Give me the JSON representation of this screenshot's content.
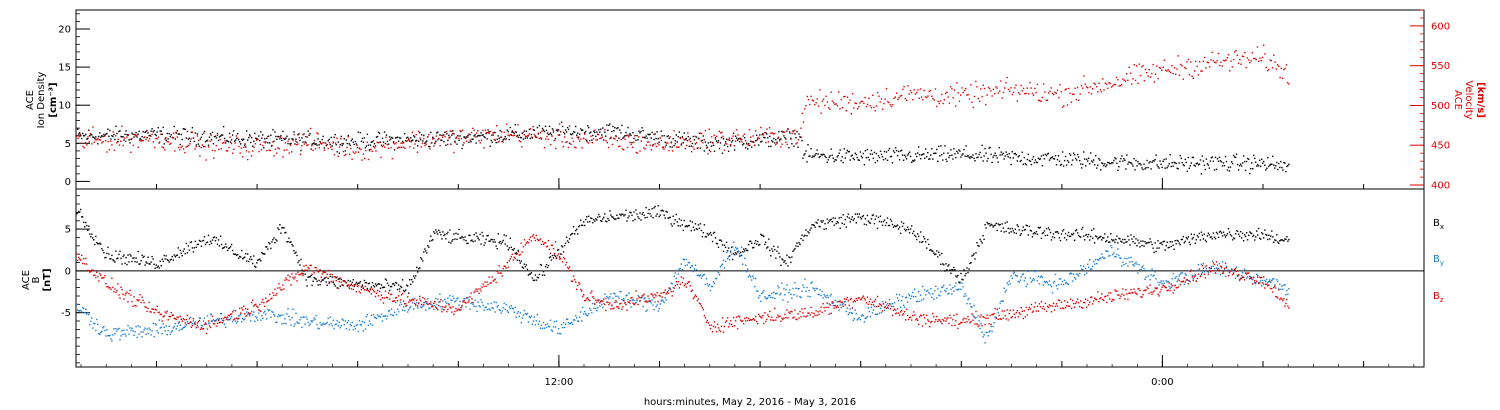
{
  "colors": {
    "black": "#000000",
    "red": "#e00000",
    "blue": "#1a7fd6"
  },
  "xlabel": "hours:minutes, May  2, 2016 - May  3, 2016",
  "chart_data": [
    {
      "type": "scatter",
      "name": "density-velocity",
      "x_unit": "hours from 2016-05-02 00:00",
      "xlim": [
        2.4,
        29.2
      ],
      "left_axis": {
        "label_lines": [
          "ACE",
          "Ion Density",
          "[cm⁻³]"
        ],
        "ylim": [
          -1,
          22.5
        ],
        "ticks": [
          0,
          5,
          10,
          15,
          20
        ],
        "color": "#000000"
      },
      "right_axis": {
        "label_lines": [
          "ACE",
          "Velocity",
          "[km/s]"
        ],
        "ylim": [
          395,
          620
        ],
        "ticks": [
          400,
          450,
          500,
          550,
          600
        ],
        "color": "#e00000"
      },
      "series": [
        {
          "axis": "left",
          "color": "#000000",
          "noise": 1.1,
          "dt": 0.02,
          "points": [
            [
              2.4,
              6.0
            ],
            [
              4,
              6.2
            ],
            [
              6,
              5.6
            ],
            [
              8,
              5.3
            ],
            [
              10,
              5.8
            ],
            [
              11,
              6.2
            ],
            [
              12,
              6.5
            ],
            [
              13,
              6.7
            ],
            [
              14,
              5.8
            ],
            [
              15,
              5.0
            ],
            [
              16,
              5.5
            ],
            [
              16.8,
              6.0
            ],
            [
              16.85,
              3.5
            ],
            [
              18,
              3.3
            ],
            [
              19,
              3.4
            ],
            [
              20,
              3.6
            ],
            [
              21,
              3.2
            ],
            [
              22,
              3.0
            ],
            [
              23,
              2.6
            ],
            [
              24,
              2.4
            ],
            [
              25,
              2.5
            ],
            [
              26,
              2.4
            ],
            [
              26.5,
              2.0
            ]
          ]
        },
        {
          "axis": "right",
          "color": "#e00000",
          "noise": 14,
          "dt": 0.025,
          "points": [
            [
              2.4,
              455
            ],
            [
              4,
              460
            ],
            [
              5,
              450
            ],
            [
              6,
              448
            ],
            [
              7,
              455
            ],
            [
              8,
              445
            ],
            [
              9,
              455
            ],
            [
              10,
              460
            ],
            [
              11,
              465
            ],
            [
              12,
              460
            ],
            [
              13,
              455
            ],
            [
              14,
              452
            ],
            [
              15,
              458
            ],
            [
              16,
              460
            ],
            [
              16.8,
              465
            ],
            [
              16.9,
              505
            ],
            [
              18,
              505
            ],
            [
              19,
              515
            ],
            [
              20,
              512
            ],
            [
              21,
              520
            ],
            [
              22,
              515
            ],
            [
              23,
              530
            ],
            [
              24,
              545
            ],
            [
              25,
              555
            ],
            [
              26,
              560
            ],
            [
              26.5,
              540
            ]
          ]
        }
      ]
    },
    {
      "type": "scatter",
      "name": "magnetic-field",
      "x_unit": "hours from 2016-05-02 00:00",
      "xlim": [
        2.4,
        29.2
      ],
      "left_axis": {
        "label_lines": [
          "ACE",
          "B",
          "[nT]"
        ],
        "ylim": [
          -11.5,
          9.8
        ],
        "ticks": [
          -5,
          0,
          5
        ],
        "color": "#000000"
      },
      "zero_line": true,
      "series": [
        {
          "name": "Bx",
          "axis": "left",
          "color": "#000000",
          "noise": 0.8,
          "dt": 0.02,
          "points": [
            [
              2.4,
              7.5
            ],
            [
              3,
              2.0
            ],
            [
              4,
              1.0
            ],
            [
              5,
              4.0
            ],
            [
              6,
              1.0
            ],
            [
              6.5,
              5.5
            ],
            [
              7,
              -1.0
            ],
            [
              8,
              -1.5
            ],
            [
              9,
              -2.0
            ],
            [
              9.5,
              4.5
            ],
            [
              10,
              4.0
            ],
            [
              11,
              3.5
            ],
            [
              11.5,
              -1.0
            ],
            [
              12,
              2.5
            ],
            [
              12.5,
              6.0
            ],
            [
              13,
              6.5
            ],
            [
              14,
              7.0
            ],
            [
              15,
              4.5
            ],
            [
              15.5,
              2.0
            ],
            [
              16,
              4.0
            ],
            [
              16.5,
              1.0
            ],
            [
              17,
              5.5
            ],
            [
              18,
              6.5
            ],
            [
              19,
              5.0
            ],
            [
              20,
              -1.0
            ],
            [
              20.5,
              5.5
            ],
            [
              21,
              5.0
            ],
            [
              22,
              4.5
            ],
            [
              23,
              4.0
            ],
            [
              24,
              3.0
            ],
            [
              25,
              4.5
            ],
            [
              26,
              4.5
            ],
            [
              26.5,
              3.5
            ]
          ]
        },
        {
          "name": "By",
          "axis": "left",
          "color": "#1a7fd6",
          "noise": 0.9,
          "dt": 0.02,
          "points": [
            [
              2.4,
              -4.0
            ],
            [
              3,
              -7.5
            ],
            [
              4,
              -7.0
            ],
            [
              5,
              -6.0
            ],
            [
              6,
              -5.0
            ],
            [
              7,
              -6.0
            ],
            [
              8,
              -6.5
            ],
            [
              9,
              -4.0
            ],
            [
              10,
              -3.5
            ],
            [
              11,
              -4.5
            ],
            [
              12,
              -7.0
            ],
            [
              12.5,
              -5.0
            ],
            [
              13,
              -3.0
            ],
            [
              14,
              -4.0
            ],
            [
              14.5,
              1.5
            ],
            [
              15,
              -2.0
            ],
            [
              15.5,
              3.5
            ],
            [
              16,
              -3.0
            ],
            [
              17,
              -2.0
            ],
            [
              18,
              -5.5
            ],
            [
              19,
              -3.0
            ],
            [
              20,
              -2.0
            ],
            [
              20.5,
              -8.0
            ],
            [
              21,
              -0.5
            ],
            [
              22,
              -1.5
            ],
            [
              23,
              2.5
            ],
            [
              24,
              -1.5
            ],
            [
              25,
              0.5
            ],
            [
              26,
              -1.0
            ],
            [
              26.5,
              -2.0
            ]
          ]
        },
        {
          "name": "Bz",
          "axis": "left",
          "color": "#e00000",
          "noise": 0.8,
          "dt": 0.02,
          "points": [
            [
              2.4,
              2.0
            ],
            [
              3,
              -1.5
            ],
            [
              4,
              -5.0
            ],
            [
              5,
              -6.5
            ],
            [
              6,
              -4.0
            ],
            [
              7,
              0.5
            ],
            [
              8,
              -2.0
            ],
            [
              9,
              -3.5
            ],
            [
              10,
              -4.5
            ],
            [
              11,
              1.0
            ],
            [
              11.5,
              4.5
            ],
            [
              12,
              2.0
            ],
            [
              12.5,
              -3.0
            ],
            [
              13,
              -4.0
            ],
            [
              14,
              -3.0
            ],
            [
              14.5,
              -1.0
            ],
            [
              15,
              -6.5
            ],
            [
              16,
              -5.5
            ],
            [
              17,
              -5.0
            ],
            [
              18,
              -3.0
            ],
            [
              19,
              -5.5
            ],
            [
              20,
              -6.0
            ],
            [
              21,
              -5.0
            ],
            [
              22,
              -4.0
            ],
            [
              23,
              -3.0
            ],
            [
              24,
              -2.0
            ],
            [
              25,
              0.5
            ],
            [
              26,
              -1.0
            ],
            [
              26.5,
              -4.0
            ]
          ]
        }
      ],
      "legend": [
        {
          "text": "B",
          "sub": "x",
          "color": "#000000"
        },
        {
          "text": "B",
          "sub": "y",
          "color": "#1a7fd6"
        },
        {
          "text": "B",
          "sub": "z",
          "color": "#e00000"
        }
      ]
    }
  ],
  "x_axis": {
    "major_ticks": [
      {
        "hour": 12,
        "label": "12:00"
      },
      {
        "hour": 24,
        "label": "0:00"
      }
    ],
    "minor_step_hours": 2
  }
}
